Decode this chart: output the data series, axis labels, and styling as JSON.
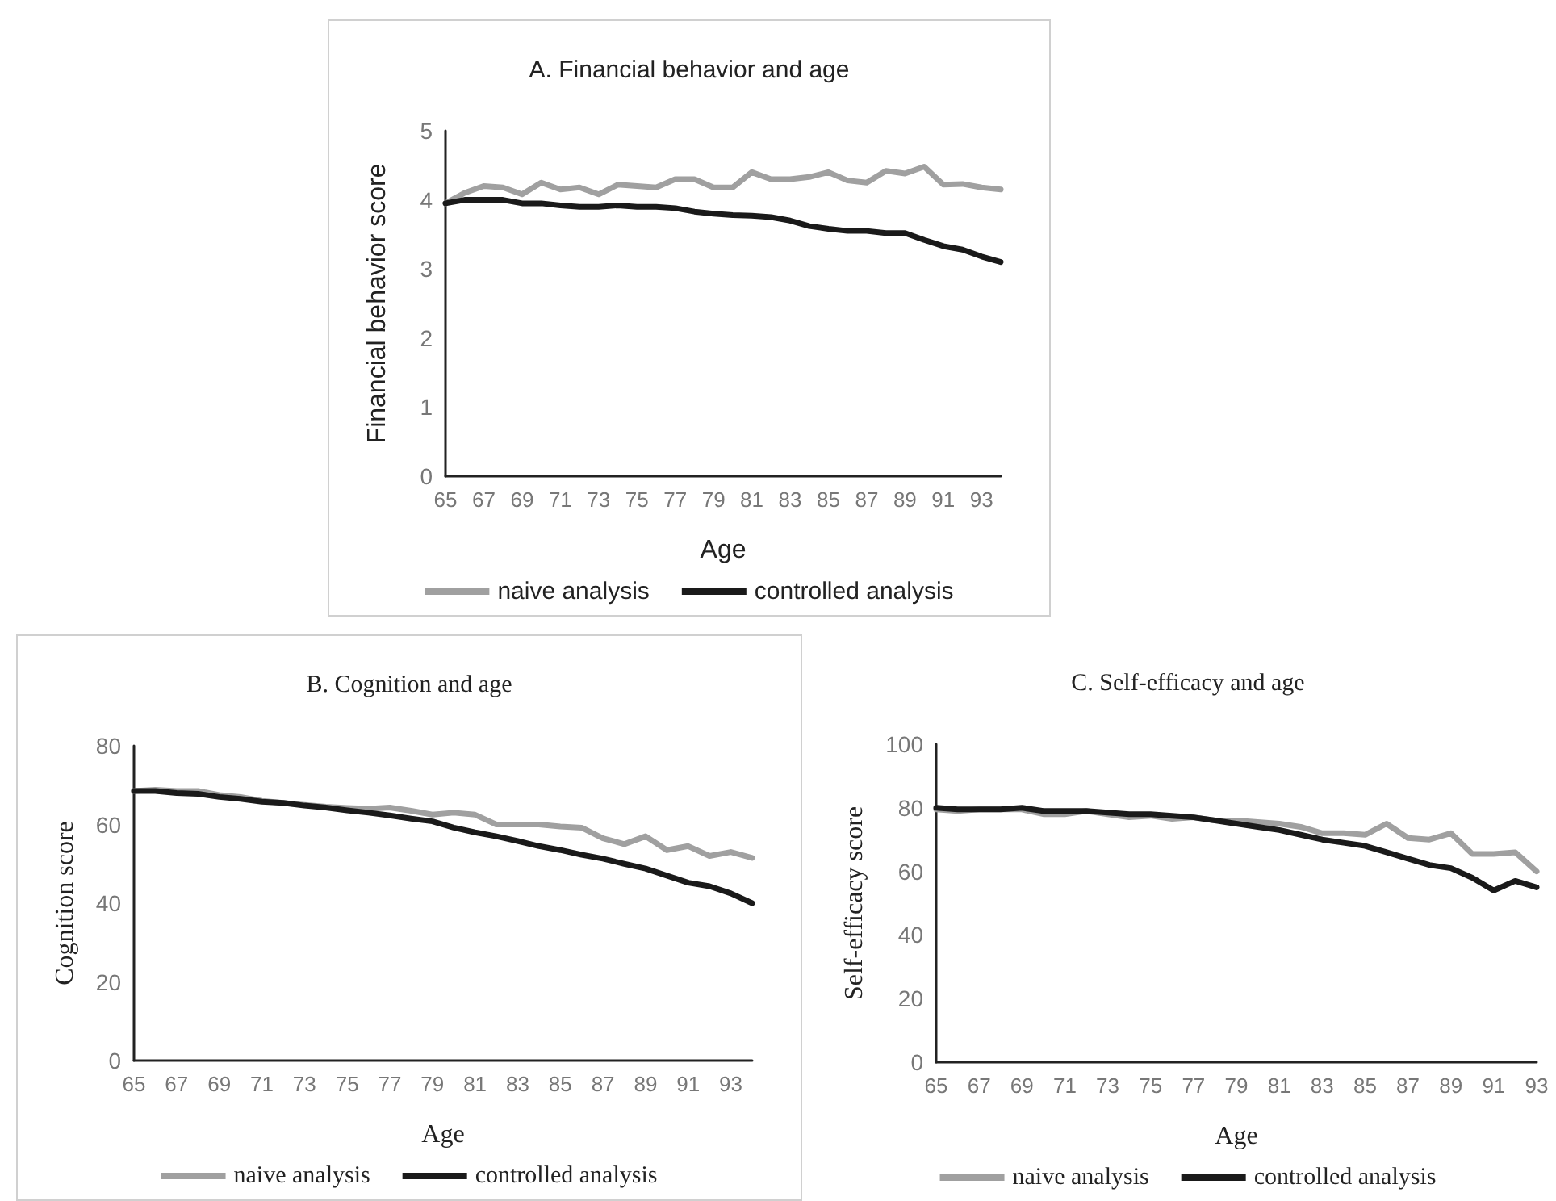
{
  "chart_data": [
    {
      "type": "line",
      "title": "A. Financial behavior and age",
      "xlabel": "Age",
      "ylabel": "Financial behavior score",
      "categories": [
        "65",
        null,
        "67",
        null,
        "69",
        null,
        "71",
        null,
        "73",
        null,
        "75",
        null,
        "77",
        null,
        "79",
        null,
        "81",
        null,
        "83",
        null,
        "85",
        null,
        "87",
        null,
        "89",
        null,
        "91",
        null,
        "93",
        null
      ],
      "ylim": [
        0,
        5
      ],
      "yticks": [
        0,
        1,
        2,
        3,
        4,
        5
      ],
      "grid": false,
      "legend": "bottom",
      "marker": "none",
      "line_style": "solid",
      "series": [
        {
          "name": "naive analysis",
          "color": "#a0a0a0",
          "values": [
            3.95,
            4.1,
            4.2,
            4.18,
            4.08,
            4.25,
            4.15,
            4.18,
            4.08,
            4.22,
            4.2,
            4.18,
            4.3,
            4.3,
            4.18,
            4.18,
            4.4,
            4.3,
            4.3,
            4.33,
            4.4,
            4.28,
            4.25,
            4.42,
            4.38,
            4.48,
            4.22,
            4.23,
            4.18,
            4.15
          ]
        },
        {
          "name": "controlled analysis",
          "color": "#1a1a1a",
          "values": [
            3.95,
            4.0,
            4.0,
            4.0,
            3.95,
            3.95,
            3.92,
            3.9,
            3.9,
            3.92,
            3.9,
            3.9,
            3.88,
            3.83,
            3.8,
            3.78,
            3.77,
            3.75,
            3.7,
            3.62,
            3.58,
            3.55,
            3.55,
            3.52,
            3.52,
            3.42,
            3.33,
            3.28,
            3.18,
            3.1
          ]
        }
      ]
    },
    {
      "type": "line",
      "title": "B. Cognition and age",
      "xlabel": "Age",
      "ylabel": "Cognition score",
      "categories": [
        "65",
        null,
        "67",
        null,
        "69",
        null,
        "71",
        null,
        "73",
        null,
        "75",
        null,
        "77",
        null,
        "79",
        null,
        "81",
        null,
        "83",
        null,
        "85",
        null,
        "87",
        null,
        "89",
        null,
        "91",
        null,
        "93",
        null
      ],
      "ylim": [
        0,
        80
      ],
      "yticks": [
        0,
        20,
        40,
        60,
        80
      ],
      "grid": false,
      "legend": "bottom",
      "marker": "none",
      "line_style": "solid",
      "series": [
        {
          "name": "naive analysis",
          "color": "#a0a0a0",
          "values": [
            68.5,
            68.8,
            68.5,
            68.5,
            67.5,
            67,
            66,
            65.5,
            65,
            64.5,
            64.2,
            64,
            64.3,
            63.5,
            62.5,
            63,
            62.5,
            60,
            60,
            60,
            59.5,
            59.2,
            56.5,
            55,
            57,
            53.5,
            54.5,
            52,
            53,
            51.5
          ]
        },
        {
          "name": "controlled analysis",
          "color": "#1a1a1a",
          "values": [
            68.5,
            68.5,
            68,
            67.8,
            67,
            66.5,
            65.8,
            65.5,
            64.8,
            64.3,
            63.6,
            63,
            62.3,
            61.5,
            60.8,
            59.2,
            58,
            57,
            55.8,
            54.5,
            53.5,
            52.3,
            51.3,
            50,
            48.8,
            47,
            45.2,
            44.3,
            42.5,
            40
          ]
        }
      ]
    },
    {
      "type": "line",
      "title": "C. Self-efficacy and age",
      "xlabel": "Age",
      "ylabel": "Self-efficacy score",
      "categories": [
        "65",
        null,
        "67",
        null,
        "69",
        null,
        "71",
        null,
        "73",
        null,
        "75",
        null,
        "77",
        null,
        "79",
        null,
        "81",
        null,
        "83",
        null,
        "85",
        null,
        "87",
        null,
        "89",
        null,
        "91",
        null,
        "93"
      ],
      "ylim": [
        0,
        100
      ],
      "yticks": [
        0,
        20,
        40,
        60,
        80,
        100
      ],
      "grid": false,
      "legend": "bottom",
      "marker": "none",
      "line_style": "solid",
      "series": [
        {
          "name": "naive analysis",
          "color": "#a0a0a0",
          "values": [
            79.5,
            79,
            79.5,
            79.5,
            79.5,
            78,
            78,
            79,
            78,
            77,
            77.5,
            76.5,
            77,
            76,
            76,
            75.5,
            75,
            74,
            72,
            72,
            71.5,
            75,
            70.5,
            70,
            72,
            65.5,
            65.5,
            66,
            60
          ]
        },
        {
          "name": "controlled analysis",
          "color": "#1a1a1a",
          "values": [
            80,
            79.5,
            79.5,
            79.5,
            80,
            79,
            79,
            79,
            78.5,
            78,
            78,
            77.5,
            77,
            76,
            75,
            74,
            73,
            71.5,
            70,
            69,
            68,
            66,
            64,
            62,
            61,
            58,
            54,
            57,
            55
          ]
        }
      ]
    }
  ]
}
